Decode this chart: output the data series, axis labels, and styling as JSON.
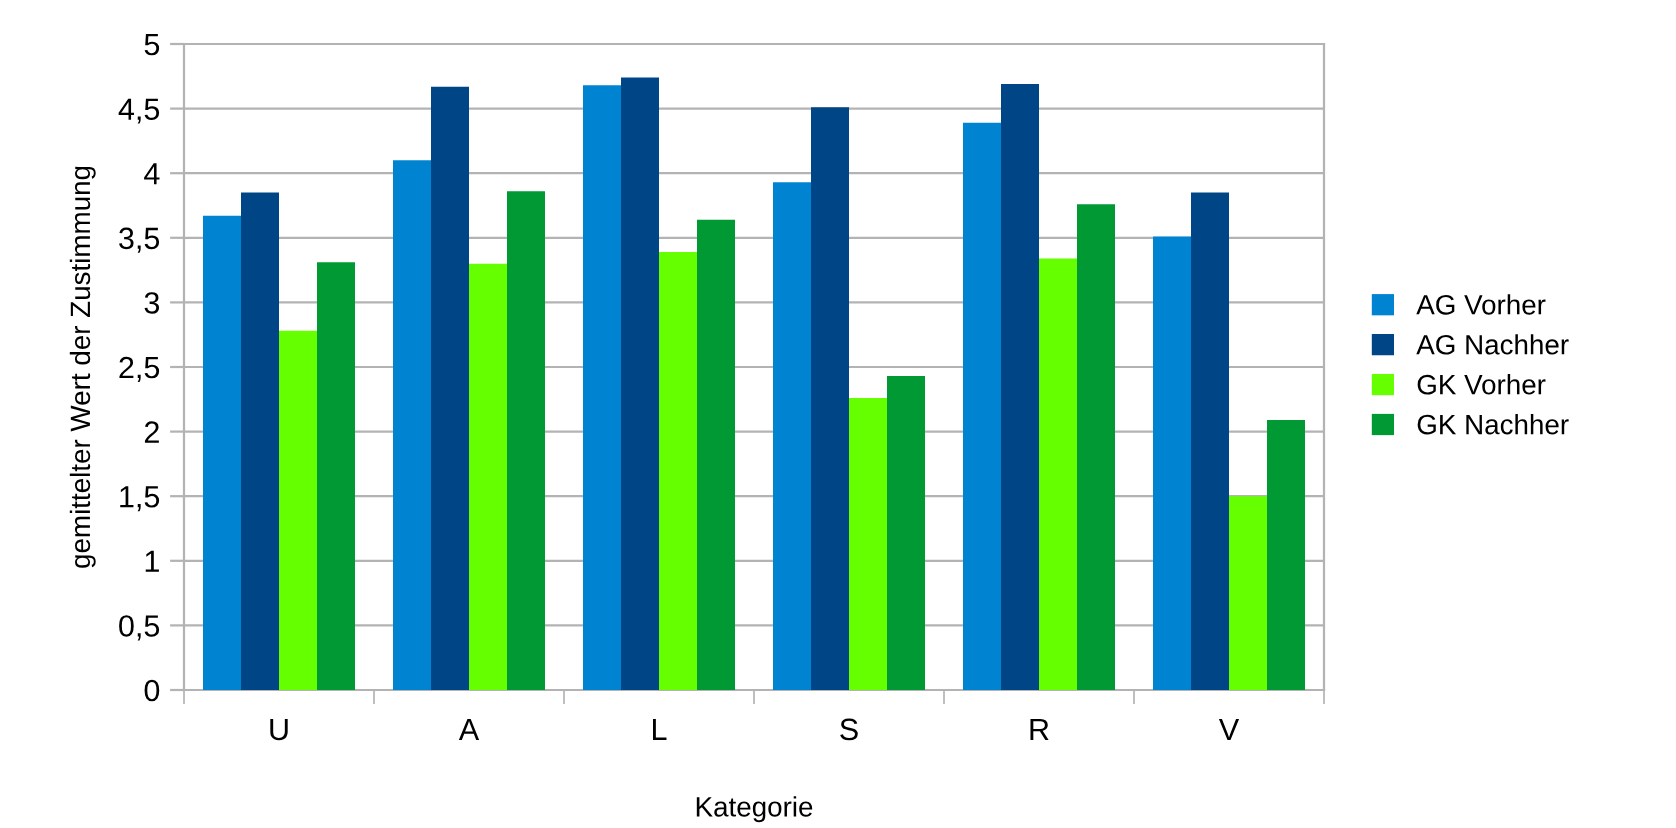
{
  "chart_data": {
    "type": "bar",
    "xlabel": "Kategorie",
    "ylabel": "gemittelter Wert der Zustimmung",
    "categories": [
      "U",
      "A",
      "L",
      "S",
      "R",
      "V"
    ],
    "series": [
      {
        "name": "AG Vorher",
        "color": "#0084d1",
        "values": [
          3.67,
          4.1,
          4.68,
          3.93,
          4.39,
          3.51
        ]
      },
      {
        "name": "AG Nachher",
        "color": "#004586",
        "values": [
          3.85,
          4.67,
          4.74,
          4.51,
          4.69,
          3.85
        ]
      },
      {
        "name": "GK Vorher",
        "color": "#66ff00",
        "values": [
          2.78,
          3.3,
          3.39,
          2.26,
          3.34,
          1.5
        ]
      },
      {
        "name": "GK Nachher",
        "color": "#009933",
        "values": [
          3.31,
          3.86,
          3.64,
          2.43,
          3.76,
          2.09
        ]
      }
    ],
    "ylim": [
      0,
      5
    ],
    "yticks": [
      0,
      {
        "value": 0.5,
        "label": "0,5"
      },
      1,
      {
        "value": 1.5,
        "label": "1,5"
      },
      2,
      {
        "value": 2.5,
        "label": "2,5"
      },
      3,
      {
        "value": 3.5,
        "label": "3,5"
      },
      4,
      {
        "value": 4.5,
        "label": "4,5"
      },
      5
    ],
    "grid": "y",
    "legend": "right"
  }
}
